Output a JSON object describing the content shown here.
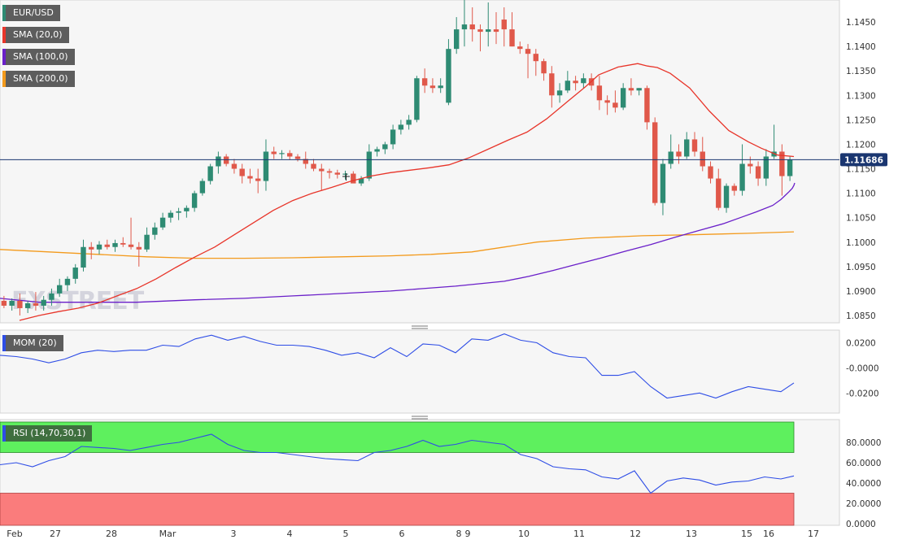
{
  "legend": {
    "symbol": "EUR/USD",
    "sma20": "SMA (20,0)",
    "sma100": "SMA (100,0)",
    "sma200": "SMA (200,0)",
    "mom": "MOM (20)",
    "rsi": "RSI (14,70,30,1)"
  },
  "colors": {
    "bull": "#2e8b73",
    "bear": "#e0584a",
    "sma20": "#e8352a",
    "sma100": "#6a1fc9",
    "sma200": "#f39a1c",
    "indicator": "#2e4de6",
    "rsi_overbought": "#5ef05e",
    "rsi_oversold": "#fa7c7c",
    "current_price": "#1a3670"
  },
  "watermark": "FXSTREET",
  "current_price_label": "1.11686",
  "chart_data": {
    "type": "candlestick",
    "title": "EUR/USD",
    "x_ticks": [
      "Feb",
      "27",
      "28",
      "Mar",
      "3",
      "4",
      "5",
      "6",
      "8",
      "9",
      "10",
      "11",
      "12",
      "13",
      "15",
      "16",
      "17"
    ],
    "price": {
      "y_ticks": [
        "1.1450",
        "1.1400",
        "1.1350",
        "1.1300",
        "1.1250",
        "1.1200",
        "1.1150",
        "1.1100",
        "1.1050",
        "1.1000",
        "1.0950",
        "1.0900",
        "1.0850"
      ],
      "ylim": [
        1.0835,
        1.1495
      ],
      "current": 1.11686,
      "candles": [
        [
          1.088,
          1.089,
          1.0865,
          1.087
        ],
        [
          1.087,
          1.0885,
          1.086,
          1.088
        ],
        [
          1.088,
          1.0895,
          1.085,
          1.0865
        ],
        [
          1.0865,
          1.088,
          1.0855,
          1.0875
        ],
        [
          1.0875,
          1.0898,
          1.086,
          1.087
        ],
        [
          1.087,
          1.089,
          1.086,
          1.0882
        ],
        [
          1.0882,
          1.0905,
          1.087,
          1.0895
        ],
        [
          1.0895,
          1.0925,
          1.0888,
          1.0912
        ],
        [
          1.0912,
          1.093,
          1.09,
          1.0925
        ],
        [
          1.0925,
          1.0955,
          1.0915,
          1.0948
        ],
        [
          1.0948,
          1.1005,
          1.094,
          1.099
        ],
        [
          1.099,
          1.1,
          1.0965,
          1.0985
        ],
        [
          1.0985,
          1.1002,
          1.0975,
          1.0995
        ],
        [
          1.0995,
          1.1005,
          1.0985,
          1.099
        ],
        [
          1.099,
          1.1005,
          1.098,
          1.0998
        ],
        [
          1.0998,
          1.101,
          1.099,
          1.0995
        ],
        [
          1.0995,
          1.105,
          1.0985,
          1.099
        ],
        [
          1.099,
          1.1,
          1.095,
          1.0985
        ],
        [
          1.0985,
          1.103,
          1.098,
          1.1015
        ],
        [
          1.1015,
          1.104,
          1.1005,
          1.103
        ],
        [
          1.103,
          1.106,
          1.1025,
          1.105
        ],
        [
          1.105,
          1.1065,
          1.104,
          1.106
        ],
        [
          1.106,
          1.107,
          1.1045,
          1.1063
        ],
        [
          1.1063,
          1.1075,
          1.105,
          1.107
        ],
        [
          1.107,
          1.1105,
          1.1062,
          1.11
        ],
        [
          1.11,
          1.113,
          1.1095,
          1.1125
        ],
        [
          1.1125,
          1.116,
          1.1118,
          1.1155
        ],
        [
          1.1155,
          1.1185,
          1.114,
          1.1175
        ],
        [
          1.1175,
          1.118,
          1.1155,
          1.116
        ],
        [
          1.116,
          1.117,
          1.114,
          1.115
        ],
        [
          1.115,
          1.116,
          1.112,
          1.1135
        ],
        [
          1.1135,
          1.115,
          1.112,
          1.113
        ],
        [
          1.113,
          1.115,
          1.11,
          1.1125
        ],
        [
          1.1125,
          1.121,
          1.1105,
          1.1185
        ],
        [
          1.1185,
          1.1195,
          1.117,
          1.118
        ],
        [
          1.118,
          1.1188,
          1.117,
          1.1182
        ],
        [
          1.1182,
          1.1188,
          1.1168,
          1.1175
        ],
        [
          1.1175,
          1.118,
          1.1165,
          1.117
        ],
        [
          1.117,
          1.1185,
          1.115,
          1.116
        ],
        [
          1.116,
          1.117,
          1.1145,
          1.115
        ],
        [
          1.115,
          1.116,
          1.1105,
          1.1145
        ],
        [
          1.1145,
          1.115,
          1.113,
          1.1142
        ],
        [
          1.1142,
          1.1148,
          1.113,
          1.1138
        ],
        [
          1.1138,
          1.1146,
          1.1128,
          1.114
        ],
        [
          1.114,
          1.1145,
          1.1125,
          1.112
        ],
        [
          1.112,
          1.1135,
          1.1115,
          1.113
        ],
        [
          1.113,
          1.12,
          1.1125,
          1.1185
        ],
        [
          1.1185,
          1.1195,
          1.1175,
          1.119
        ],
        [
          1.119,
          1.1205,
          1.118,
          1.12
        ],
        [
          1.12,
          1.124,
          1.119,
          1.123
        ],
        [
          1.123,
          1.125,
          1.122,
          1.124
        ],
        [
          1.124,
          1.126,
          1.123,
          1.125
        ],
        [
          1.125,
          1.134,
          1.1245,
          1.1335
        ],
        [
          1.1335,
          1.1355,
          1.1305,
          1.132
        ],
        [
          1.132,
          1.1335,
          1.1305,
          1.1315
        ],
        [
          1.1315,
          1.1335,
          1.1305,
          1.132
        ],
        [
          1.1285,
          1.1415,
          1.128,
          1.1395
        ],
        [
          1.1395,
          1.146,
          1.1385,
          1.1435
        ],
        [
          1.1435,
          1.1495,
          1.14,
          1.1445
        ],
        [
          1.1445,
          1.148,
          1.141,
          1.1435
        ],
        [
          1.1435,
          1.1445,
          1.139,
          1.143
        ],
        [
          1.143,
          1.149,
          1.14,
          1.1435
        ],
        [
          1.1435,
          1.147,
          1.1405,
          1.143
        ],
        [
          1.1455,
          1.148,
          1.14,
          1.1435
        ],
        [
          1.1435,
          1.147,
          1.14,
          1.14
        ],
        [
          1.14,
          1.141,
          1.1385,
          1.1395
        ],
        [
          1.1395,
          1.1405,
          1.1335,
          1.1385
        ],
        [
          1.1385,
          1.1395,
          1.134,
          1.137
        ],
        [
          1.137,
          1.1375,
          1.133,
          1.1345
        ],
        [
          1.1345,
          1.136,
          1.1275,
          1.13
        ],
        [
          1.13,
          1.1325,
          1.1285,
          1.131
        ],
        [
          1.131,
          1.135,
          1.1305,
          1.133
        ],
        [
          1.133,
          1.134,
          1.131,
          1.1325
        ],
        [
          1.1325,
          1.1345,
          1.1315,
          1.1335
        ],
        [
          1.1335,
          1.1345,
          1.131,
          1.132
        ],
        [
          1.132,
          1.134,
          1.127,
          1.129
        ],
        [
          1.129,
          1.13,
          1.126,
          1.1285
        ],
        [
          1.1285,
          1.131,
          1.1265,
          1.1275
        ],
        [
          1.1275,
          1.1325,
          1.127,
          1.1315
        ],
        [
          1.1315,
          1.1335,
          1.13,
          1.131
        ],
        [
          1.131,
          1.1315,
          1.13,
          1.1315
        ],
        [
          1.1315,
          1.132,
          1.123,
          1.1245
        ],
        [
          1.1245,
          1.1255,
          1.1075,
          1.108
        ],
        [
          1.108,
          1.117,
          1.1055,
          1.116
        ],
        [
          1.116,
          1.122,
          1.115,
          1.1185
        ],
        [
          1.1185,
          1.12,
          1.116,
          1.1175
        ],
        [
          1.1175,
          1.1225,
          1.117,
          1.121
        ],
        [
          1.121,
          1.1225,
          1.1175,
          1.1185
        ],
        [
          1.1185,
          1.1215,
          1.1145,
          1.1155
        ],
        [
          1.1155,
          1.1165,
          1.112,
          1.113
        ],
        [
          1.113,
          1.115,
          1.1065,
          1.107
        ],
        [
          1.107,
          1.112,
          1.106,
          1.1115
        ],
        [
          1.1115,
          1.112,
          1.1095,
          1.1105
        ],
        [
          1.1105,
          1.12,
          1.1095,
          1.116
        ],
        [
          1.116,
          1.1175,
          1.114,
          1.1155
        ],
        [
          1.1155,
          1.1165,
          1.1115,
          1.113
        ],
        [
          1.113,
          1.119,
          1.1115,
          1.1175
        ],
        [
          1.1175,
          1.124,
          1.117,
          1.1185
        ],
        [
          1.1185,
          1.12,
          1.1095,
          1.1135
        ],
        [
          1.1135,
          1.1175,
          1.1125,
          1.11686
        ]
      ],
      "sma20": [
        1.084,
        1.085,
        1.0858,
        1.0865,
        1.0875,
        1.089,
        1.0905,
        1.0925,
        1.0948,
        1.097,
        1.099,
        1.1015,
        1.104,
        1.1065,
        1.1085,
        1.11,
        1.1112,
        1.1125,
        1.1135,
        1.1142,
        1.1147,
        1.1152,
        1.1158,
        1.1172,
        1.119,
        1.1208,
        1.1225,
        1.1252,
        1.1285,
        1.1318,
        1.1342,
        1.1358,
        1.1365,
        1.136,
        1.1357,
        1.1345,
        1.1315,
        1.1268,
        1.1228,
        1.1205,
        1.1192,
        1.1178,
        1.1175
      ],
      "sma20_x": [
        24,
        48,
        72,
        96,
        120,
        144,
        168,
        192,
        216,
        240,
        264,
        288,
        312,
        336,
        360,
        384,
        408,
        432,
        456,
        480,
        504,
        528,
        552,
        576,
        600,
        624,
        648,
        672,
        696,
        720,
        736,
        760,
        784,
        796,
        808,
        824,
        848,
        872,
        896,
        920,
        936,
        956,
        976
      ],
      "sma100": [
        1.0885,
        1.0877,
        1.0877,
        1.0877,
        1.0882,
        1.0885,
        1.089,
        1.0895,
        1.09,
        1.0905,
        1.091,
        1.0915,
        1.092,
        1.093,
        1.0942,
        1.0955,
        1.0968,
        1.0982,
        1.0995,
        1.101,
        1.1024,
        1.1038,
        1.105,
        1.1062,
        1.1075,
        1.1087,
        1.1095,
        1.1103,
        1.111,
        1.1116,
        1.1121
      ],
      "sma100_x": [
        0,
        48,
        96,
        168,
        240,
        300,
        360,
        420,
        480,
        520,
        560,
        590,
        620,
        650,
        680,
        710,
        740,
        770,
        800,
        830,
        860,
        890,
        910,
        930,
        950,
        960,
        965,
        970,
        974,
        976,
        977
      ],
      "sma200": [
        1.0985,
        1.098,
        1.0975,
        1.097,
        1.0967,
        1.0967,
        1.0968,
        1.097,
        1.0972,
        1.0975,
        1.098,
        1.099,
        1.1,
        1.1008,
        1.1013,
        1.1015,
        1.1018,
        1.1021
      ],
      "sma200_x": [
        0,
        60,
        120,
        180,
        240,
        300,
        360,
        420,
        480,
        530,
        580,
        620,
        660,
        720,
        790,
        850,
        920,
        976
      ]
    },
    "mom": {
      "label": "MOM (20)",
      "y_ticks": [
        "0.0200",
        "-0.0000",
        "-0.0200"
      ],
      "ylim": [
        -0.036,
        0.03
      ],
      "x": [
        0,
        20,
        40,
        60,
        80,
        100,
        120,
        140,
        160,
        180,
        200,
        220,
        240,
        260,
        280,
        300,
        320,
        340,
        360,
        380,
        400,
        420,
        440,
        460,
        480,
        500,
        520,
        540,
        560,
        580,
        600,
        620,
        640,
        660,
        680,
        700,
        720,
        740,
        760,
        780,
        800,
        820,
        840,
        860,
        880,
        900,
        920,
        940,
        960,
        976
      ],
      "values": [
        0.01,
        0.009,
        0.007,
        0.004,
        0.007,
        0.012,
        0.014,
        0.013,
        0.014,
        0.014,
        0.018,
        0.017,
        0.023,
        0.026,
        0.022,
        0.025,
        0.021,
        0.018,
        0.018,
        0.017,
        0.014,
        0.01,
        0.012,
        0.008,
        0.016,
        0.009,
        0.019,
        0.018,
        0.012,
        0.023,
        0.022,
        0.027,
        0.022,
        0.02,
        0.012,
        0.009,
        0.008,
        -0.006,
        -0.006,
        -0.003,
        -0.015,
        -0.024,
        -0.022,
        -0.02,
        -0.024,
        -0.019,
        -0.015,
        -0.017,
        -0.019,
        -0.012
      ]
    },
    "rsi": {
      "label": "RSI (14,70,30,1)",
      "y_ticks": [
        "80.0000",
        "60.0000",
        "40.0000",
        "20.0000",
        "0.0000"
      ],
      "ylim": [
        0,
        100
      ],
      "overbought": 70,
      "oversold": 30,
      "x": [
        0,
        20,
        40,
        60,
        80,
        100,
        120,
        140,
        160,
        180,
        200,
        220,
        240,
        260,
        280,
        300,
        320,
        340,
        360,
        380,
        400,
        420,
        440,
        460,
        480,
        500,
        520,
        540,
        560,
        580,
        600,
        620,
        640,
        660,
        680,
        700,
        720,
        740,
        760,
        780,
        800,
        820,
        840,
        860,
        880,
        900,
        920,
        940,
        960,
        976
      ],
      "values": [
        58,
        60,
        56,
        62,
        66,
        76,
        75,
        74,
        72,
        75,
        78,
        80,
        84,
        88,
        78,
        72,
        70,
        70,
        68,
        66,
        64,
        63,
        62,
        70,
        72,
        76,
        82,
        76,
        78,
        82,
        80,
        78,
        68,
        64,
        56,
        54,
        53,
        46,
        44,
        52,
        30,
        42,
        45,
        43,
        38,
        41,
        42,
        46,
        44,
        47
      ]
    }
  }
}
